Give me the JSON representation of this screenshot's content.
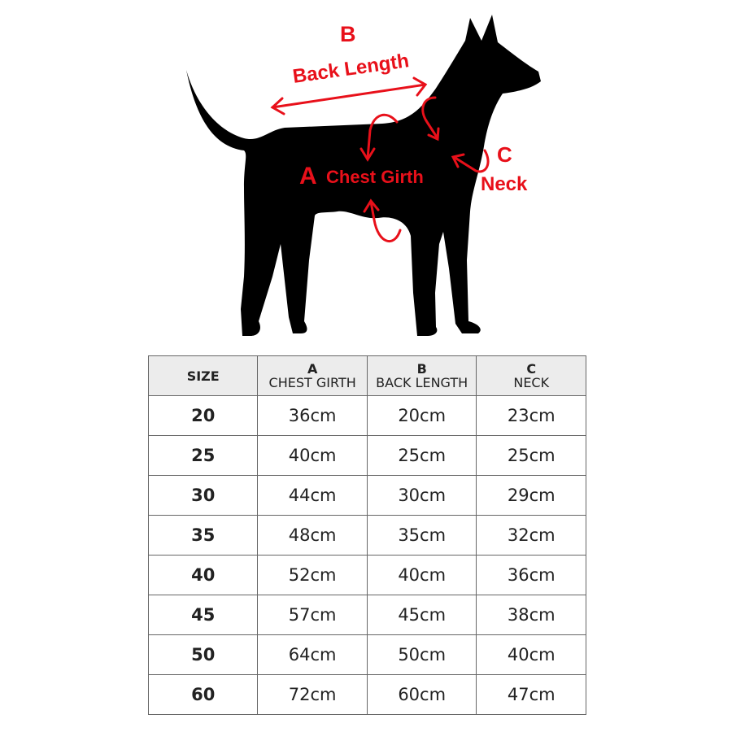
{
  "diagram": {
    "colors": {
      "silhouette": "#000000",
      "annotation": "#e8101a"
    },
    "labels": {
      "b_letter": "B",
      "b_text": "Back Length",
      "a_letter": "A",
      "a_text": "Chest Girth",
      "c_letter": "C",
      "c_text": "Neck"
    }
  },
  "table": {
    "headers": [
      {
        "letter": "",
        "label": "SIZE"
      },
      {
        "letter": "A",
        "label": "CHEST GIRTH"
      },
      {
        "letter": "B",
        "label": "BACK LENGTH"
      },
      {
        "letter": "C",
        "label": "NECK"
      }
    ],
    "rows": [
      [
        "20",
        "36cm",
        "20cm",
        "23cm"
      ],
      [
        "25",
        "40cm",
        "25cm",
        "25cm"
      ],
      [
        "30",
        "44cm",
        "30cm",
        "29cm"
      ],
      [
        "35",
        "48cm",
        "35cm",
        "32cm"
      ],
      [
        "40",
        "52cm",
        "40cm",
        "36cm"
      ],
      [
        "45",
        "57cm",
        "45cm",
        "38cm"
      ],
      [
        "50",
        "64cm",
        "50cm",
        "40cm"
      ],
      [
        "60",
        "72cm",
        "60cm",
        "47cm"
      ]
    ]
  }
}
